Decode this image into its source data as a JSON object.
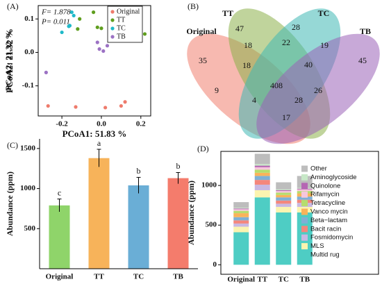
{
  "chart_data": [
    {
      "type": "scatter",
      "label": "(A)",
      "annotations": [
        "F= 1.878",
        "P= 0.011"
      ],
      "xlabel": "PCoA1: 51.83 %",
      "ylabel": "PCoA2: 21.32 %",
      "xlim": [
        -0.32,
        0.25
      ],
      "ylim": [
        -0.19,
        0.14
      ],
      "xticks": [
        -0.2,
        {
          "value": 0,
          "label": "0.0"
        },
        0.2
      ],
      "yticks": [
        -0.1,
        {
          "value": 0,
          "label": "0.0"
        },
        0.1
      ],
      "legend": "upper right",
      "series": [
        {
          "name": "Original",
          "color": "#ee7b6c",
          "x": [
            -0.27,
            -0.13,
            0.02,
            0.1,
            0.12
          ],
          "y": [
            -0.16,
            -0.163,
            -0.165,
            -0.16,
            -0.148
          ]
        },
        {
          "name": "TT",
          "color": "#5f9e1e",
          "x": [
            -0.04,
            -0.11,
            -0.12,
            -0.02,
            0.0,
            0.22
          ],
          "y": [
            0.12,
            0.1,
            0.07,
            0.075,
            0.072,
            0.055
          ]
        },
        {
          "name": "TC",
          "color": "#1fb9c9",
          "x": [
            -0.15,
            -0.14,
            -0.2,
            -0.165,
            -0.16
          ],
          "y": [
            0.12,
            0.11,
            0.06,
            0.078,
            0.08
          ]
        },
        {
          "name": "TB",
          "color": "#9c72c4",
          "x": [
            -0.28,
            -0.02,
            -0.01,
            0.01,
            0.03,
            0.06
          ],
          "y": [
            -0.06,
            0.03,
            0.01,
            0.004,
            0.02,
            0.04
          ]
        }
      ]
    },
    {
      "type": "venn",
      "label": "(B)",
      "sets": [
        {
          "name": "Original",
          "color": "#f08070"
        },
        {
          "name": "TT",
          "color": "#8db04a"
        },
        {
          "name": "TC",
          "color": "#3fb8b4"
        },
        {
          "name": "TB",
          "color": "#9a63b8"
        }
      ],
      "values": [
        35,
        47,
        28,
        45,
        18,
        22,
        19,
        18,
        40,
        408,
        9,
        26,
        4,
        28,
        17
      ]
    },
    {
      "type": "bar",
      "label": "(C)",
      "ylabel": "Abundance (ppm)",
      "categories": [
        "Original",
        "TT",
        "TC",
        "TB"
      ],
      "values": [
        790,
        1380,
        1040,
        1130
      ],
      "errors": [
        80,
        110,
        100,
        70
      ],
      "letters": [
        "c",
        "a",
        "b",
        "b"
      ],
      "colors": [
        "#8fd46a",
        "#f7b35a",
        "#6aaed6",
        "#f47c6c"
      ],
      "ylim": [
        0,
        1620
      ],
      "yticks": [
        500,
        1000,
        1500
      ]
    },
    {
      "type": "stacked_bar",
      "label": "(D)",
      "ylabel": "Abundance (ppm)",
      "categories": [
        "Original",
        "TT",
        "TC",
        "TB"
      ],
      "ylim": [
        -120,
        1430
      ],
      "yticks": [
        0,
        500,
        1000
      ],
      "legend": "right",
      "series": [
        {
          "name": "Multid rug",
          "color": "#4ecdc4",
          "values": [
            410,
            850,
            660,
            660
          ]
        },
        {
          "name": "MLS",
          "color": "#fbf4b0",
          "values": [
            70,
            90,
            70,
            70
          ]
        },
        {
          "name": "Fosmidomycin",
          "color": "#c8b8e2",
          "values": [
            40,
            70,
            40,
            50
          ]
        },
        {
          "name": "Bacit racin",
          "color": "#f4877c",
          "values": [
            40,
            60,
            40,
            40
          ]
        },
        {
          "name": "Beta−lactam",
          "color": "#7eb0d5",
          "values": [
            40,
            50,
            40,
            40
          ]
        },
        {
          "name": "Vanco mycin",
          "color": "#f9b35a",
          "values": [
            50,
            40,
            30,
            40
          ]
        },
        {
          "name": "Tetracycline",
          "color": "#b5dd6e",
          "values": [
            30,
            40,
            30,
            30
          ]
        },
        {
          "name": "Rifamycin",
          "color": "#f7c6dc",
          "values": [
            20,
            30,
            20,
            20
          ]
        },
        {
          "name": "Quinolone",
          "color": "#b566b3",
          "values": [
            10,
            20,
            10,
            10
          ]
        },
        {
          "name": "Aminoglycoside",
          "color": "#c8e8c8",
          "values": [
            10,
            20,
            10,
            10
          ]
        },
        {
          "name": "Other",
          "color": "#bdbdbd",
          "values": [
            70,
            130,
            90,
            150
          ]
        }
      ]
    }
  ]
}
